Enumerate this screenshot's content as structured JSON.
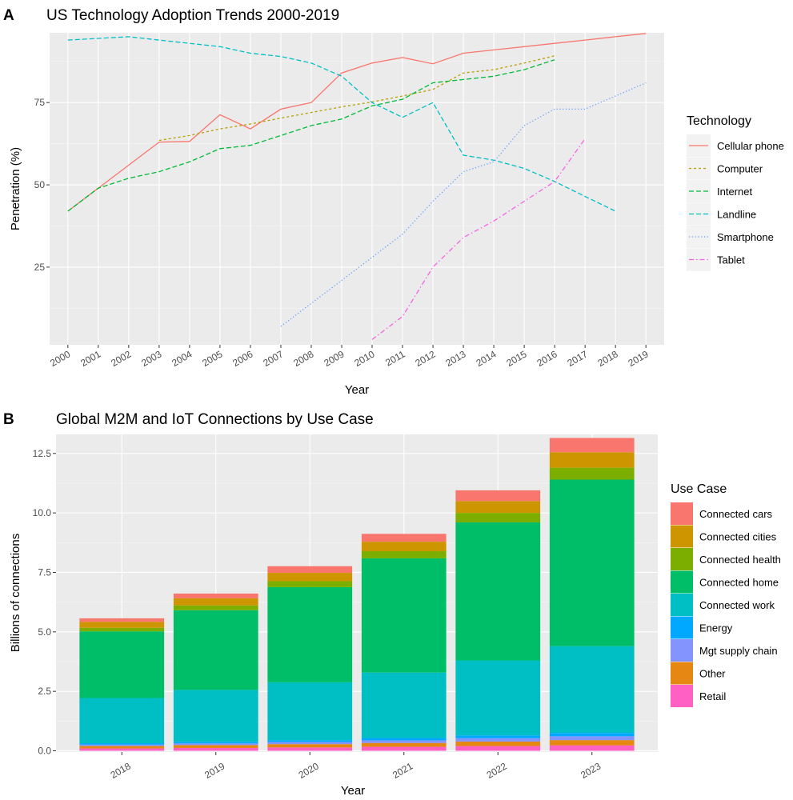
{
  "chart_data": [
    {
      "panel": "A",
      "type": "line",
      "title": "US Technology Adoption Trends 2000-2019",
      "xlabel": "Year",
      "ylabel": "Penetration (%)",
      "legend_title": "Technology",
      "legend_position": "right",
      "grid": true,
      "xlim": [
        2000,
        2019
      ],
      "ylim": [
        3,
        96
      ],
      "y_ticks": [
        25,
        50,
        75
      ],
      "x_ticks": [
        2000,
        2001,
        2002,
        2003,
        2004,
        2005,
        2006,
        2007,
        2008,
        2009,
        2010,
        2011,
        2012,
        2013,
        2014,
        2015,
        2016,
        2017,
        2018,
        2019
      ],
      "series": [
        {
          "name": "Cellular phone",
          "color": "#F8766D",
          "linetype": "solid",
          "points": [
            [
              2000,
              42
            ],
            [
              2001,
              49
            ],
            [
              2002,
              56
            ],
            [
              2003,
              63
            ],
            [
              2004,
              63.2
            ],
            [
              2005,
              71.3
            ],
            [
              2006,
              67
            ],
            [
              2007,
              73
            ],
            [
              2008,
              75
            ],
            [
              2009,
              84
            ],
            [
              2010,
              87
            ],
            [
              2011,
              88.7
            ],
            [
              2012,
              86.8
            ],
            [
              2013,
              90
            ],
            [
              2014,
              91
            ],
            [
              2015,
              92
            ],
            [
              2016,
              93
            ],
            [
              2017,
              94
            ],
            [
              2018,
              95
            ],
            [
              2019,
              96
            ]
          ]
        },
        {
          "name": "Computer",
          "color": "#B79F00",
          "linetype": "dashed",
          "points": [
            [
              2003,
              63.5
            ],
            [
              2004,
              65
            ],
            [
              2005,
              67
            ],
            [
              2006,
              68.5
            ],
            [
              2007,
              70.3
            ],
            [
              2008,
              72
            ],
            [
              2009,
              73.7
            ],
            [
              2010,
              75.2
            ],
            [
              2011,
              77
            ],
            [
              2012,
              79
            ],
            [
              2013,
              84
            ],
            [
              2014,
              85
            ],
            [
              2015,
              87
            ],
            [
              2016,
              89.2
            ]
          ]
        },
        {
          "name": "Internet",
          "color": "#00BA38",
          "linetype": "longdash",
          "points": [
            [
              2000,
              42
            ],
            [
              2001,
              49
            ],
            [
              2002,
              52
            ],
            [
              2003,
              54
            ],
            [
              2004,
              57
            ],
            [
              2005,
              61
            ],
            [
              2006,
              62
            ],
            [
              2007,
              65
            ],
            [
              2008,
              68
            ],
            [
              2009,
              70
            ],
            [
              2010,
              74
            ],
            [
              2011,
              76
            ],
            [
              2012,
              81
            ],
            [
              2013,
              82
            ],
            [
              2014,
              83
            ],
            [
              2015,
              85
            ],
            [
              2016,
              88
            ]
          ]
        },
        {
          "name": "Landline",
          "color": "#00BFC4",
          "linetype": "longdash",
          "points": [
            [
              2000,
              94
            ],
            [
              2001,
              94.5
            ],
            [
              2002,
              95
            ],
            [
              2003,
              94
            ],
            [
              2004,
              93
            ],
            [
              2005,
              92
            ],
            [
              2006,
              90
            ],
            [
              2007,
              89
            ],
            [
              2008,
              87
            ],
            [
              2009,
              83
            ],
            [
              2010,
              75
            ],
            [
              2011,
              70.5
            ],
            [
              2012,
              75
            ],
            [
              2013,
              59
            ],
            [
              2014,
              57.5
            ],
            [
              2015,
              55
            ],
            [
              2016,
              51
            ],
            [
              2017,
              46.5
            ],
            [
              2018,
              42
            ]
          ]
        },
        {
          "name": "Smartphone",
          "color": "#619CFF",
          "linetype": "dotted",
          "points": [
            [
              2007,
              7
            ],
            [
              2008,
              14
            ],
            [
              2009,
              21
            ],
            [
              2010,
              28
            ],
            [
              2011,
              35
            ],
            [
              2012,
              45
            ],
            [
              2013,
              54
            ],
            [
              2014,
              57
            ],
            [
              2015,
              68
            ],
            [
              2016,
              73
            ],
            [
              2017,
              73
            ],
            [
              2018,
              77
            ],
            [
              2019,
              81
            ]
          ]
        },
        {
          "name": "Tablet",
          "color": "#F564E3",
          "linetype": "dotdash",
          "points": [
            [
              2010,
              3
            ],
            [
              2011,
              10
            ],
            [
              2012,
              25
            ],
            [
              2013,
              34
            ],
            [
              2014,
              39
            ],
            [
              2015,
              45
            ],
            [
              2016,
              51
            ],
            [
              2017,
              64
            ]
          ]
        }
      ]
    },
    {
      "panel": "B",
      "type": "bar",
      "stacked": true,
      "title": "Global M2M and IoT Connections by Use Case",
      "xlabel": "Year",
      "ylabel": "Billions of connections",
      "legend_title": "Use Case",
      "legend_position": "right",
      "grid": true,
      "ylim": [
        0,
        13.3
      ],
      "y_ticks": [
        0.0,
        2.5,
        5.0,
        7.5,
        10.0,
        12.5
      ],
      "y_tick_labels": [
        "0.0",
        "2.5",
        "5.0",
        "7.5",
        "10.0",
        "12.5"
      ],
      "categories": [
        "2018",
        "2019",
        "2020",
        "2021",
        "2022",
        "2023"
      ],
      "series": [
        {
          "name": "Connected cars",
          "color": "#F8766D",
          "values": [
            0.15,
            0.2,
            0.28,
            0.33,
            0.45,
            0.6
          ]
        },
        {
          "name": "Connected cities",
          "color": "#CD9600",
          "values": [
            0.25,
            0.3,
            0.35,
            0.4,
            0.5,
            0.65
          ]
        },
        {
          "name": "Connected health",
          "color": "#7CAE00",
          "values": [
            0.15,
            0.2,
            0.25,
            0.3,
            0.4,
            0.5
          ]
        },
        {
          "name": "Connected home",
          "color": "#00BE67",
          "values": [
            2.8,
            3.35,
            4.0,
            4.8,
            5.8,
            7.0
          ]
        },
        {
          "name": "Connected work",
          "color": "#00BFC4",
          "values": [
            1.9,
            2.18,
            2.43,
            2.75,
            3.15,
            3.65
          ]
        },
        {
          "name": "Energy",
          "color": "#00A9FF",
          "values": [
            0.06,
            0.07,
            0.08,
            0.1,
            0.12,
            0.14
          ]
        },
        {
          "name": "Mgt supply chain",
          "color": "#8494FF",
          "values": [
            0.06,
            0.07,
            0.09,
            0.11,
            0.14,
            0.16
          ]
        },
        {
          "name": "Other",
          "color": "#E68613",
          "values": [
            0.1,
            0.12,
            0.14,
            0.16,
            0.19,
            0.22
          ]
        },
        {
          "name": "Retail",
          "color": "#FF61C3",
          "values": [
            0.1,
            0.12,
            0.14,
            0.17,
            0.2,
            0.23
          ]
        }
      ]
    }
  ]
}
